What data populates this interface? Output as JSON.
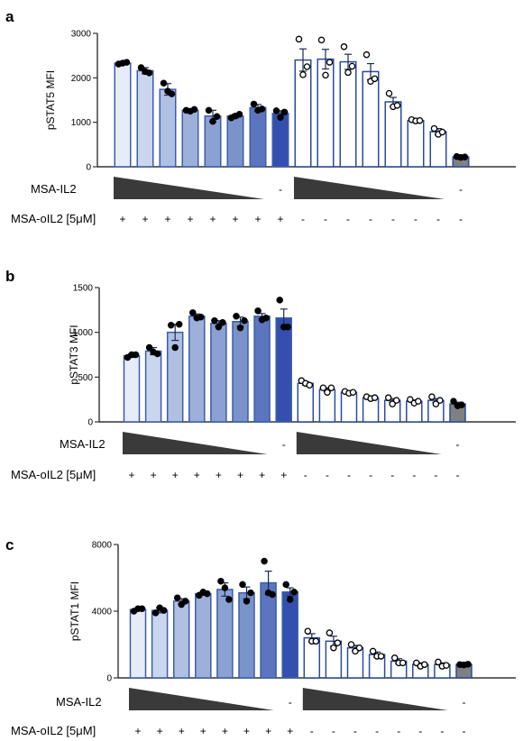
{
  "chart_data": [
    {
      "panel": "a",
      "type": "bar",
      "ylabel": "pSTAT5 MFI",
      "ylim": [
        0,
        3000
      ],
      "yticks": [
        0,
        1000,
        2000,
        3000
      ],
      "bars": [
        2330,
        2160,
        1740,
        1270,
        1140,
        1140,
        1330,
        1200,
        2400,
        2420,
        2360,
        2140,
        1460,
        1040,
        790,
        220
      ],
      "errors": [
        25,
        70,
        130,
        20,
        130,
        40,
        70,
        60,
        250,
        220,
        170,
        180,
        100,
        20,
        70,
        20
      ],
      "points": [
        [
          2310,
          2330,
          2350
        ],
        [
          2230,
          2140,
          2110
        ],
        [
          1880,
          1700,
          1640
        ],
        [
          1270,
          1250,
          1290
        ],
        [
          1270,
          1020,
          1130
        ],
        [
          1100,
          1140,
          1180
        ],
        [
          1410,
          1270,
          1300
        ],
        [
          1260,
          1110,
          1230
        ],
        [
          2870,
          2070,
          2250
        ],
        [
          2850,
          2060,
          2350
        ],
        [
          2700,
          2120,
          2260
        ],
        [
          2520,
          1920,
          1980
        ],
        [
          1650,
          1350,
          1380
        ],
        [
          1060,
          1030,
          1040
        ],
        [
          860,
          730,
          780
        ],
        [
          230,
          210,
          220
        ]
      ],
      "row1_label": "MSA-IL2",
      "row2_label": "MSA-oIL2 [5μM]",
      "row1_signs": [
        "-",
        "-"
      ],
      "row2_signs": [
        "+",
        "+",
        "+",
        "+",
        "+",
        "+",
        "+",
        "+",
        "-",
        "-",
        "-",
        "-",
        "-",
        "-",
        "-",
        "-"
      ]
    },
    {
      "panel": "b",
      "type": "bar",
      "ylabel": "pSTAT3 MFI",
      "ylim": [
        0,
        1500
      ],
      "yticks": [
        0,
        500,
        1000,
        1500
      ],
      "bars": [
        740,
        790,
        1000,
        1180,
        1100,
        1120,
        1180,
        1160,
        430,
        360,
        330,
        270,
        240,
        230,
        240,
        200
      ],
      "errors": [
        20,
        40,
        90,
        25,
        30,
        50,
        30,
        100,
        20,
        20,
        15,
        15,
        20,
        15,
        20,
        20
      ],
      "points": [
        [
          720,
          750,
          750
        ],
        [
          830,
          780,
          760
        ],
        [
          1080,
          830,
          1090
        ],
        [
          1220,
          1160,
          1170
        ],
        [
          1130,
          1060,
          1110
        ],
        [
          1180,
          1050,
          1130
        ],
        [
          1240,
          1140,
          1160
        ],
        [
          1360,
          1060,
          1060
        ],
        [
          460,
          430,
          410
        ],
        [
          380,
          330,
          380
        ],
        [
          340,
          320,
          330
        ],
        [
          280,
          260,
          270
        ],
        [
          270,
          200,
          240
        ],
        [
          250,
          210,
          230
        ],
        [
          280,
          200,
          240
        ],
        [
          230,
          180,
          190
        ]
      ],
      "row1_label": "MSA-IL2",
      "row2_label": "MSA-oIL2 [5μM]",
      "row1_signs": [
        "-",
        "-"
      ],
      "row2_signs": [
        "+",
        "+",
        "+",
        "+",
        "+",
        "+",
        "+",
        "+",
        "-",
        "-",
        "-",
        "-",
        "-",
        "-",
        "-",
        "-"
      ]
    },
    {
      "panel": "c",
      "type": "bar",
      "ylabel": "pSTAT1 MFI",
      "ylim": [
        0,
        8000
      ],
      "yticks": [
        0,
        4000,
        8000
      ],
      "bars": [
        4100,
        4050,
        4600,
        5050,
        5300,
        5100,
        5700,
        5150,
        2400,
        2200,
        1800,
        1400,
        1000,
        800,
        800,
        800
      ],
      "errors": [
        80,
        150,
        150,
        100,
        400,
        350,
        700,
        250,
        250,
        300,
        150,
        150,
        150,
        100,
        100,
        60
      ],
      "points": [
        [
          4000,
          4150,
          4150
        ],
        [
          3900,
          4200,
          4050
        ],
        [
          4800,
          4400,
          4600
        ],
        [
          4950,
          5150,
          5050
        ],
        [
          5800,
          5400,
          4700
        ],
        [
          5600,
          4600,
          5100
        ],
        [
          7000,
          5100,
          5000
        ],
        [
          5600,
          4700,
          5150
        ],
        [
          2800,
          2200,
          2200
        ],
        [
          2700,
          1800,
          2100
        ],
        [
          2000,
          1600,
          1800
        ],
        [
          1600,
          1300,
          1300
        ],
        [
          1200,
          900,
          900
        ],
        [
          900,
          700,
          800
        ],
        [
          950,
          700,
          750
        ],
        [
          800,
          780,
          820
        ]
      ],
      "row1_label": "MSA-IL2",
      "row2_label": "MSA-oIL2 [5μM]",
      "row1_signs": [
        "-",
        "-"
      ],
      "row2_signs": [
        "+",
        "+",
        "+",
        "+",
        "+",
        "+",
        "+",
        "+",
        "-",
        "-",
        "-",
        "-",
        "-",
        "-",
        "-",
        "-"
      ]
    }
  ],
  "colors": {
    "axis": "#333333",
    "bar_edge": "#2b4ba0",
    "mono_edge": "#3d5da8",
    "fills": [
      "#e6ecf8",
      "#cad6ee",
      "#b0c0e3",
      "#9cb0da",
      "#8ba1d3",
      "#7b93cb",
      "#5b76bf",
      "#3350b0",
      "#ffffff",
      "#ffffff",
      "#ffffff",
      "#ffffff",
      "#ffffff",
      "#ffffff",
      "#ffffff",
      "#808080"
    ],
    "point_fill_filled": "#000000",
    "point_fill_open": "#ffffff",
    "triangle": "#3a3a3a"
  }
}
